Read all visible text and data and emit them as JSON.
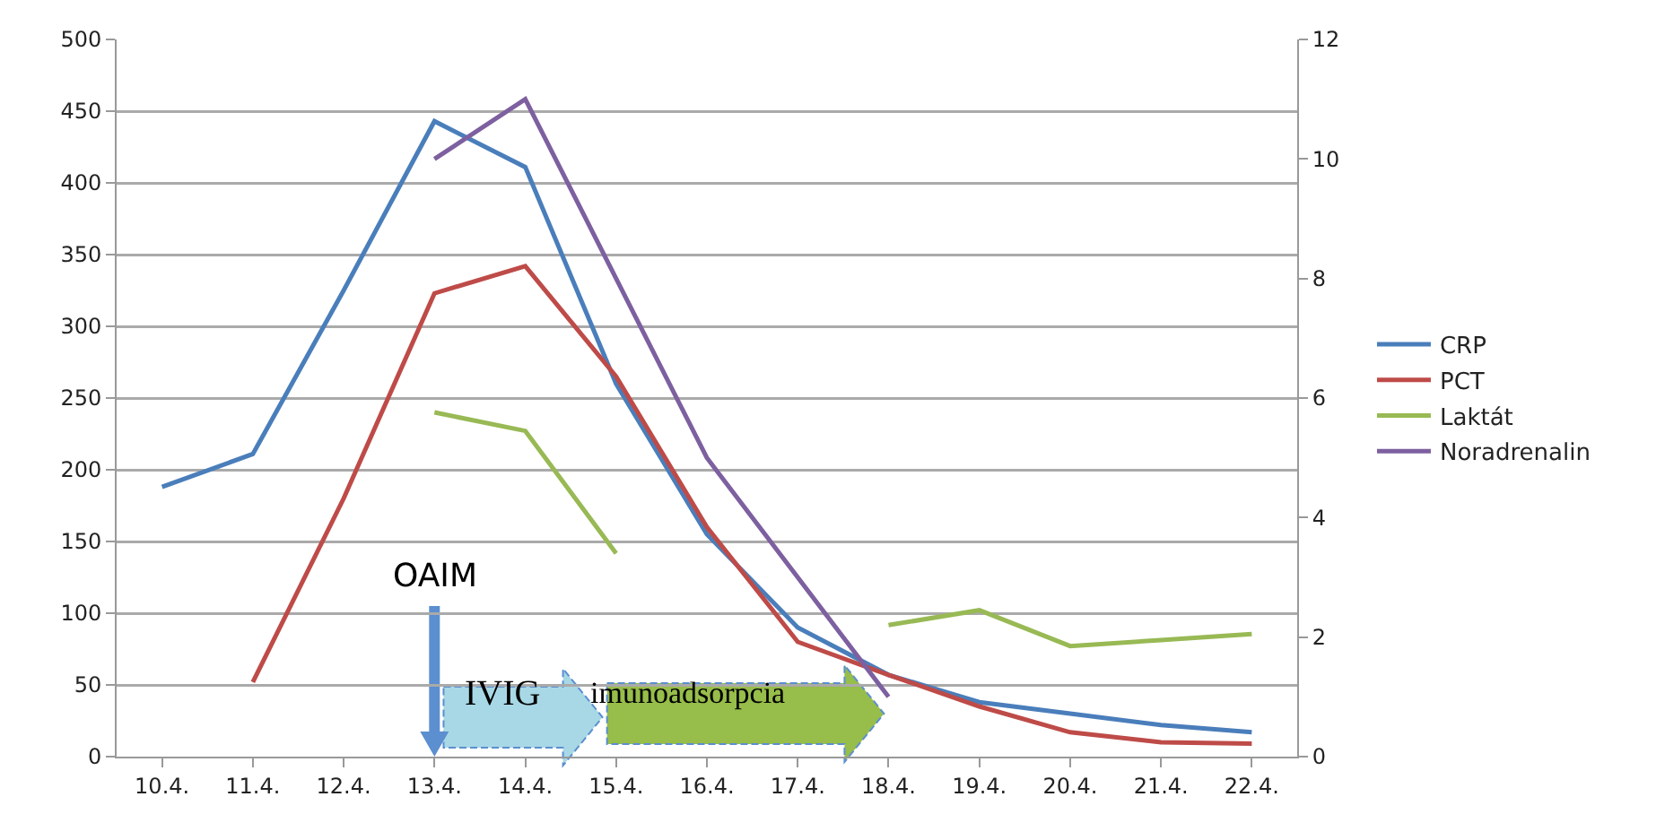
{
  "chart_data": {
    "type": "line",
    "categories": [
      "10.4.",
      "11.4.",
      "12.4.",
      "13.4.",
      "14.4.",
      "15.4.",
      "16.4.",
      "17.4.",
      "18.4.",
      "19.4.",
      "20.4.",
      "21.4.",
      "22.4."
    ],
    "series": [
      {
        "name": "CRP",
        "color": "#4a7ebb",
        "values": [
          188,
          211,
          325,
          443,
          411,
          260,
          155,
          90,
          57,
          38,
          30,
          22,
          17
        ]
      },
      {
        "name": "PCT",
        "color": "#be4b48",
        "values": [
          null,
          52,
          180,
          323,
          342,
          265,
          160,
          80,
          57,
          35,
          17,
          10,
          9
        ]
      },
      {
        "name": "Laktát",
        "color": "#98b954",
        "axis": "y2",
        "values": [
          null,
          null,
          null,
          5.76,
          5.45,
          3.4,
          null,
          null,
          2.2,
          2.45,
          1.85,
          1.95,
          2.05
        ]
      },
      {
        "name": "Noradrenalin",
        "color": "#7d60a0",
        "axis": "y2",
        "values": [
          null,
          null,
          null,
          10.0,
          11.0,
          8.0,
          5.0,
          3.0,
          1.0,
          null,
          null,
          null,
          null
        ]
      }
    ],
    "ylim": [
      0,
      500
    ],
    "yticks": [
      0,
      50,
      100,
      150,
      200,
      250,
      300,
      350,
      400,
      450,
      500
    ],
    "y2lim": [
      0,
      12
    ],
    "y2ticks": [
      0,
      2,
      4,
      6,
      8,
      10,
      12
    ],
    "grid": "y",
    "legend": "right",
    "marker": "none",
    "line_style": "solid",
    "annotations": [
      "OAIM",
      "IVIG",
      "imunoadsorpcia"
    ]
  }
}
